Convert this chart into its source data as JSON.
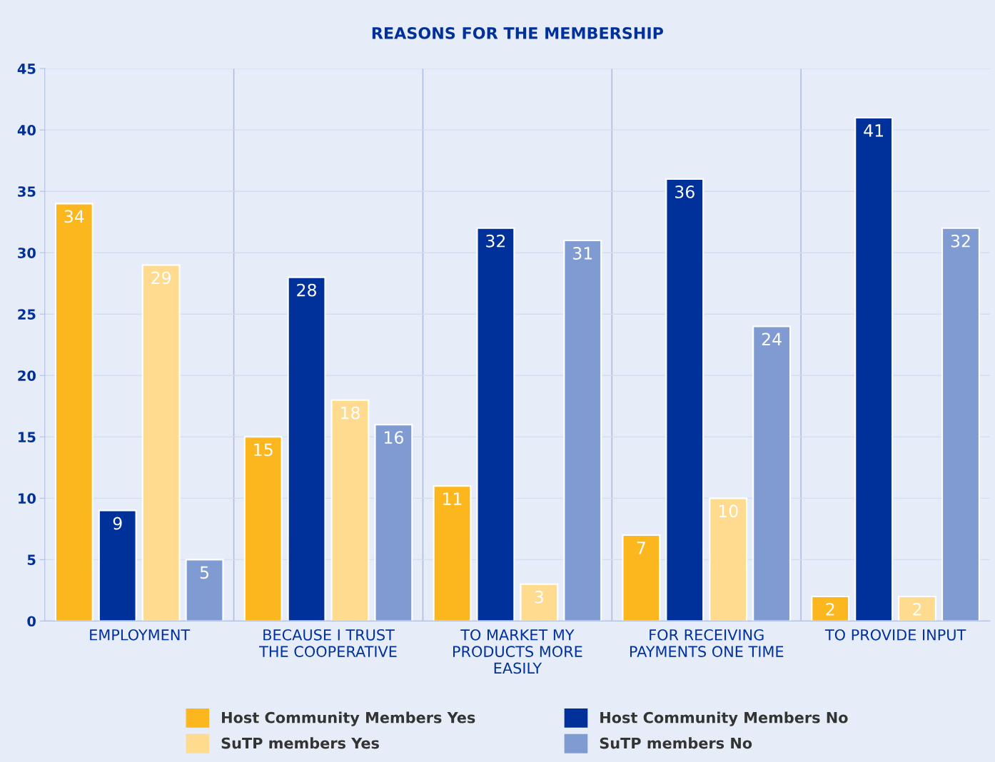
{
  "chart_data": {
    "type": "bar",
    "title": "REASONS FOR THE MEMBERSHIP",
    "categories": [
      "EMPLOYMENT",
      "BECAUSE I TRUST\nTHE COOPERATIVE",
      "TO MARKET MY\nPRODUCTS MORE\nEASILY",
      "FOR RECEIVING\nPAYMENTS ONE TIME",
      "TO PROVIDE INPUT"
    ],
    "series": [
      {
        "name": "Host Community Members Yes",
        "color": "#fdb71e",
        "values": [
          34,
          15,
          11,
          7,
          2
        ]
      },
      {
        "name": "Host Community Members No",
        "color": "#00319b",
        "values": [
          9,
          28,
          32,
          36,
          41
        ]
      },
      {
        "name": "SuTP members Yes",
        "color": "#fedb8e",
        "values": [
          29,
          18,
          3,
          10,
          2
        ]
      },
      {
        "name": "SuTP members No",
        "color": "#7f9bd1",
        "values": [
          5,
          16,
          31,
          24,
          32
        ]
      }
    ],
    "ylim": [
      0,
      45
    ],
    "yticks": [
      0,
      5,
      10,
      15,
      20,
      25,
      30,
      35,
      40,
      45
    ],
    "grid": "y",
    "legend": "bottom",
    "data_labels": true
  }
}
